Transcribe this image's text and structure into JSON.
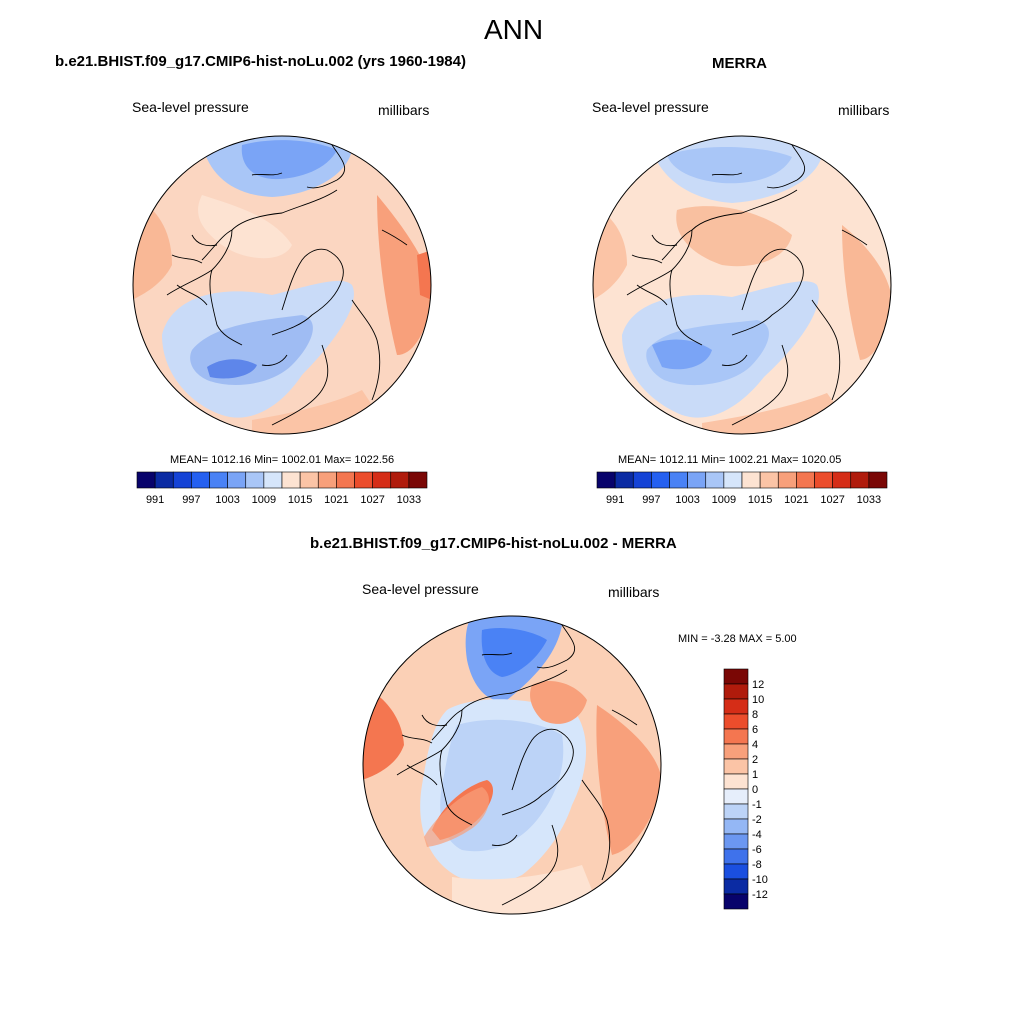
{
  "page": {
    "title": "ANN",
    "colors": {
      "ocean_base": "#fddbc7",
      "coast": "#000000"
    }
  },
  "panels": {
    "model": {
      "case_title": "b.e21.BHIST.f09_g17.CMIP6-hist-noLu.002 (yrs 1960-1984)",
      "variable": "Sea-level pressure",
      "units": "millibars",
      "stats": "MEAN= 1012.16  Min= 1002.01  Max= 1022.56"
    },
    "obs": {
      "case_title": "MERRA",
      "variable": "Sea-level pressure",
      "units": "millibars",
      "stats": "MEAN= 1012.11  Min= 1002.21  Max= 1020.05"
    },
    "diff": {
      "case_title": "b.e21.BHIST.f09_g17.CMIP6-hist-noLu.002 - MERRA",
      "variable": "Sea-level pressure",
      "units": "millibars",
      "stats": "MIN =  -3.28 MAX =   5.00"
    }
  },
  "chart_data": [
    {
      "type": "heatmap",
      "projection": "north-polar-stereographic",
      "title": "b.e21.BHIST.f09_g17.CMIP6-hist-noLu.002 (yrs 1960-1984)",
      "variable": "Sea-level pressure",
      "units": "millibars",
      "mean": 1012.16,
      "min": 1002.01,
      "max": 1022.56,
      "colorbar_levels": [
        991,
        994,
        997,
        1000,
        1003,
        1006,
        1009,
        1012,
        1015,
        1018,
        1021,
        1024,
        1027,
        1030,
        1033
      ],
      "colorbar_tick_labels": [
        "991",
        "997",
        "1003",
        "1009",
        "1015",
        "1021",
        "1027",
        "1033"
      ],
      "colorbar_colors": [
        "#08036b",
        "#0b2ba3",
        "#1543d6",
        "#2560f0",
        "#4a82f5",
        "#7aa4f6",
        "#a9c6f7",
        "#d6e6fb",
        "#fde3d2",
        "#fbc4a6",
        "#f8a07b",
        "#f47650",
        "#ec4d2c",
        "#d52d17",
        "#b01b0c",
        "#7a0705"
      ]
    },
    {
      "type": "heatmap",
      "projection": "north-polar-stereographic",
      "title": "MERRA",
      "variable": "Sea-level pressure",
      "units": "millibars",
      "mean": 1012.11,
      "min": 1002.21,
      "max": 1020.05,
      "colorbar_levels": [
        991,
        994,
        997,
        1000,
        1003,
        1006,
        1009,
        1012,
        1015,
        1018,
        1021,
        1024,
        1027,
        1030,
        1033
      ],
      "colorbar_tick_labels": [
        "991",
        "997",
        "1003",
        "1009",
        "1015",
        "1021",
        "1027",
        "1033"
      ],
      "colorbar_colors": [
        "#08036b",
        "#0b2ba3",
        "#1543d6",
        "#2560f0",
        "#4a82f5",
        "#7aa4f6",
        "#a9c6f7",
        "#d6e6fb",
        "#fde3d2",
        "#fbc4a6",
        "#f8a07b",
        "#f47650",
        "#ec4d2c",
        "#d52d17",
        "#b01b0c",
        "#7a0705"
      ]
    },
    {
      "type": "heatmap",
      "projection": "north-polar-stereographic",
      "title": "b.e21.BHIST.f09_g17.CMIP6-hist-noLu.002 - MERRA",
      "variable": "Sea-level pressure",
      "units": "millibars",
      "min": -3.28,
      "max": 5.0,
      "colorbar_levels": [
        -12,
        -10,
        -8,
        -6,
        -4,
        -2,
        -1,
        0,
        1,
        2,
        4,
        6,
        8,
        10,
        12
      ],
      "colorbar_tick_labels": [
        "12",
        "10",
        "8",
        "6",
        "4",
        "2",
        "1",
        "0",
        "-1",
        "-2",
        "-4",
        "-6",
        "-8",
        "-10",
        "-12"
      ],
      "colorbar_colors": [
        "#7a0705",
        "#b01b0c",
        "#d52d17",
        "#ec4d2c",
        "#f47650",
        "#f8a07b",
        "#fbc4a6",
        "#fde3d2",
        "#e6eefb",
        "#bcd3f7",
        "#94b7f5",
        "#6b97f1",
        "#3f72eb",
        "#1a4fe0",
        "#0b2ba3",
        "#08036b"
      ]
    }
  ]
}
